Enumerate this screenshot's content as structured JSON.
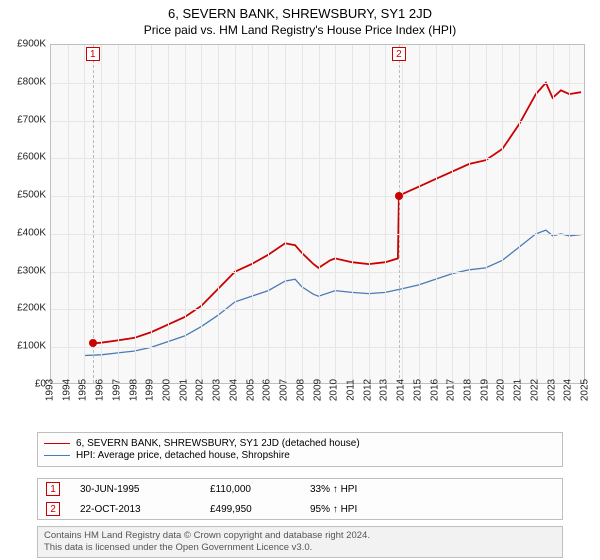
{
  "title": "6, SEVERN BANK, SHREWSBURY, SY1 2JD",
  "subtitle": "Price paid vs. HM Land Registry's House Price Index (HPI)",
  "chart": {
    "type": "line",
    "background_color": "#f8f8f8",
    "border_color": "#bfbfbf",
    "grid_color": "#e6e6e6",
    "x": {
      "min": 1993,
      "max": 2025,
      "tick_step": 1,
      "label_fontsize": 10
    },
    "y": {
      "min": 0,
      "max": 900000,
      "tick_step": 100000,
      "label_prefix": "£",
      "label_suffix": "K",
      "label_fontsize": 10
    },
    "series": [
      {
        "name": "property",
        "label": "6, SEVERN BANK, SHREWSBURY, SY1 2JD (detached house)",
        "color": "#cc0000",
        "line_width": 1.8,
        "points": [
          [
            1995.5,
            110000
          ],
          [
            1996,
            112000
          ],
          [
            1997,
            118000
          ],
          [
            1998,
            125000
          ],
          [
            1999,
            140000
          ],
          [
            2000,
            160000
          ],
          [
            2001,
            180000
          ],
          [
            2002,
            210000
          ],
          [
            2003,
            255000
          ],
          [
            2004,
            300000
          ],
          [
            2005,
            320000
          ],
          [
            2006,
            345000
          ],
          [
            2007,
            375000
          ],
          [
            2007.6,
            370000
          ],
          [
            2008,
            350000
          ],
          [
            2008.7,
            320000
          ],
          [
            2009,
            310000
          ],
          [
            2009.7,
            330000
          ],
          [
            2010,
            335000
          ],
          [
            2011,
            325000
          ],
          [
            2012,
            320000
          ],
          [
            2013,
            325000
          ],
          [
            2013.75,
            335000
          ],
          [
            2013.81,
            499950
          ],
          [
            2014,
            505000
          ],
          [
            2015,
            525000
          ],
          [
            2016,
            545000
          ],
          [
            2017,
            565000
          ],
          [
            2018,
            585000
          ],
          [
            2019,
            595000
          ],
          [
            2020,
            625000
          ],
          [
            2021,
            690000
          ],
          [
            2022,
            770000
          ],
          [
            2022.6,
            800000
          ],
          [
            2023,
            760000
          ],
          [
            2023.5,
            780000
          ],
          [
            2024,
            770000
          ],
          [
            2024.7,
            775000
          ]
        ]
      },
      {
        "name": "hpi",
        "label": "HPI: Average price, detached house, Shropshire",
        "color": "#4a7bb5",
        "line_width": 1.3,
        "points": [
          [
            1995,
            78000
          ],
          [
            1996,
            80000
          ],
          [
            1997,
            85000
          ],
          [
            1998,
            90000
          ],
          [
            1999,
            100000
          ],
          [
            2000,
            115000
          ],
          [
            2001,
            130000
          ],
          [
            2002,
            155000
          ],
          [
            2003,
            185000
          ],
          [
            2004,
            220000
          ],
          [
            2005,
            235000
          ],
          [
            2006,
            250000
          ],
          [
            2007,
            275000
          ],
          [
            2007.6,
            280000
          ],
          [
            2008,
            260000
          ],
          [
            2008.7,
            240000
          ],
          [
            2009,
            235000
          ],
          [
            2010,
            250000
          ],
          [
            2011,
            245000
          ],
          [
            2012,
            242000
          ],
          [
            2013,
            245000
          ],
          [
            2014,
            255000
          ],
          [
            2015,
            265000
          ],
          [
            2016,
            280000
          ],
          [
            2017,
            295000
          ],
          [
            2018,
            305000
          ],
          [
            2019,
            310000
          ],
          [
            2020,
            330000
          ],
          [
            2021,
            365000
          ],
          [
            2022,
            400000
          ],
          [
            2022.6,
            410000
          ],
          [
            2023,
            395000
          ],
          [
            2023.5,
            400000
          ],
          [
            2024,
            395000
          ],
          [
            2024.7,
            398000
          ]
        ]
      }
    ],
    "events": [
      {
        "n": "1",
        "year": 1995.5,
        "value": 110000
      },
      {
        "n": "2",
        "year": 2013.81,
        "value": 499950
      }
    ]
  },
  "legend": {
    "items": [
      {
        "color": "#cc0000",
        "width": 1.8,
        "label": "6, SEVERN BANK, SHREWSBURY, SY1 2JD (detached house)"
      },
      {
        "color": "#4a7bb5",
        "width": 1.3,
        "label": "HPI: Average price, detached house, Shropshire"
      }
    ]
  },
  "table": {
    "rows": [
      {
        "n": "1",
        "date": "30-JUN-1995",
        "price": "£110,000",
        "pct": "33% ↑ HPI"
      },
      {
        "n": "2",
        "date": "22-OCT-2013",
        "price": "£499,950",
        "pct": "95% ↑ HPI"
      }
    ]
  },
  "footnote_line1": "Contains HM Land Registry data © Crown copyright and database right 2024.",
  "footnote_line2": "This data is licensed under the Open Government Licence v3.0."
}
